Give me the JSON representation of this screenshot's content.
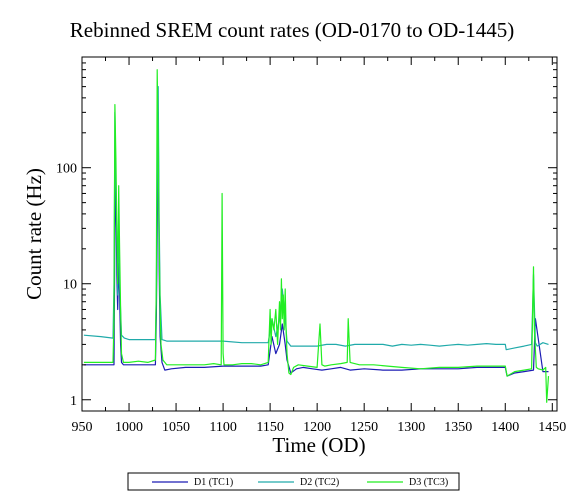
{
  "chart_data": {
    "type": "line",
    "title": "Rebinned SREM count rates (OD-0170 to OD-1445)",
    "xlabel": "Time (OD)",
    "ylabel": "Count rate (Hz)",
    "xlim": [
      950,
      1455
    ],
    "ylim": [
      0.8,
      900
    ],
    "yscale": "log",
    "grid": false,
    "legend_position": "bottom-center",
    "x_ticks": [
      950,
      1000,
      1050,
      1100,
      1150,
      1200,
      1250,
      1300,
      1350,
      1400,
      1450
    ],
    "y_ticks": [
      1,
      10,
      100
    ],
    "y_tick_labels": [
      "1",
      "10",
      "100"
    ],
    "series": [
      {
        "name": "D1 (TC1)",
        "color": "#1c1cb4",
        "x": [
          952,
          984,
          985,
          986,
          987,
          988,
          989,
          990,
          991,
          992,
          994,
          1000,
          1010,
          1020,
          1028,
          1029,
          1030,
          1031,
          1032,
          1033,
          1035,
          1038,
          1045,
          1060,
          1080,
          1100,
          1120,
          1140,
          1148,
          1152,
          1156,
          1160,
          1163,
          1166,
          1168,
          1172,
          1178,
          1185,
          1195,
          1205,
          1215,
          1225,
          1235,
          1250,
          1270,
          1290,
          1310,
          1330,
          1350,
          1370,
          1390,
          1400,
          1402,
          1410,
          1420,
          1430,
          1432,
          1440,
          1446
        ],
        "values": [
          2.0,
          2.0,
          30,
          80,
          12,
          6,
          15,
          8,
          3.0,
          2.1,
          2.0,
          2.0,
          2.0,
          2.0,
          2.0,
          5,
          25,
          300,
          15,
          3.5,
          2.1,
          1.8,
          1.85,
          1.9,
          1.9,
          1.95,
          1.95,
          1.95,
          2.0,
          3.5,
          2.5,
          3.0,
          4.5,
          3.0,
          2.2,
          1.7,
          1.85,
          1.9,
          1.85,
          1.8,
          1.85,
          1.9,
          1.8,
          1.85,
          1.8,
          1.8,
          1.85,
          1.85,
          1.85,
          1.9,
          1.9,
          1.9,
          1.6,
          1.7,
          1.75,
          1.8,
          5,
          1.75,
          1.75
        ]
      },
      {
        "name": "D2 (TC2)",
        "color": "#20aaaa",
        "x": [
          952,
          970,
          983,
          984,
          985,
          986,
          987,
          988,
          989,
          990,
          992,
          995,
          1000,
          1010,
          1020,
          1028,
          1029,
          1030,
          1031,
          1032,
          1033,
          1035,
          1040,
          1060,
          1080,
          1100,
          1120,
          1140,
          1148,
          1152,
          1156,
          1160,
          1163,
          1166,
          1168,
          1172,
          1180,
          1190,
          1200,
          1210,
          1220,
          1230,
          1240,
          1250,
          1260,
          1270,
          1280,
          1290,
          1300,
          1310,
          1320,
          1330,
          1340,
          1350,
          1360,
          1370,
          1380,
          1390,
          1400,
          1401,
          1410,
          1420,
          1428,
          1430,
          1432,
          1434,
          1440,
          1446
        ],
        "values": [
          3.6,
          3.5,
          3.4,
          10,
          300,
          60,
          25,
          8,
          40,
          10,
          3.6,
          3.4,
          3.3,
          3.3,
          3.3,
          3.3,
          8,
          60,
          500,
          40,
          8,
          3.3,
          3.2,
          3.2,
          3.2,
          3.2,
          3.1,
          3.1,
          3.1,
          5,
          3.5,
          5,
          9,
          5,
          3.2,
          2.9,
          2.9,
          2.9,
          2.9,
          3.0,
          3.0,
          2.9,
          3.0,
          3.0,
          3.0,
          3.0,
          2.9,
          3.0,
          2.95,
          3.0,
          2.95,
          2.9,
          2.95,
          3.0,
          2.95,
          3.0,
          3.05,
          3.0,
          3.0,
          2.7,
          2.8,
          2.9,
          3.0,
          12,
          3.1,
          2.9,
          3.1,
          3.0
        ]
      },
      {
        "name": "D3 (TC3)",
        "color": "#22ee22",
        "x": [
          952,
          970,
          983,
          984,
          985,
          986,
          987,
          988,
          989,
          990,
          991,
          992,
          994,
          1000,
          1010,
          1020,
          1028,
          1029,
          1030,
          1031,
          1032,
          1033,
          1034,
          1036,
          1040,
          1050,
          1060,
          1070,
          1080,
          1090,
          1098,
          1099,
          1100,
          1101,
          1110,
          1120,
          1130,
          1140,
          1148,
          1150,
          1151,
          1152,
          1154,
          1156,
          1158,
          1160,
          1161,
          1162,
          1163,
          1164,
          1165,
          1166,
          1167,
          1168,
          1170,
          1172,
          1175,
          1180,
          1190,
          1200,
          1203,
          1205,
          1208,
          1215,
          1225,
          1232,
          1233,
          1235,
          1245,
          1260,
          1275,
          1290,
          1310,
          1330,
          1350,
          1370,
          1390,
          1400,
          1402,
          1410,
          1420,
          1428,
          1430,
          1431,
          1433,
          1435,
          1440,
          1443,
          1444,
          1446
        ],
        "values": [
          2.1,
          2.1,
          2.1,
          5,
          350,
          120,
          30,
          10,
          70,
          20,
          6,
          2.5,
          2.1,
          2.1,
          2.15,
          2.1,
          2.2,
          10,
          700,
          150,
          25,
          6,
          3,
          2.2,
          2.0,
          2.0,
          2.0,
          2.0,
          2.0,
          2.05,
          2.0,
          60,
          2.5,
          2.0,
          2.0,
          2.05,
          2.05,
          2.0,
          2.1,
          6,
          3,
          5,
          4,
          6,
          3,
          7,
          4,
          11,
          5,
          8,
          4,
          9,
          4,
          2.5,
          1.7,
          1.65,
          1.9,
          2.0,
          1.95,
          1.9,
          4.5,
          2.0,
          1.95,
          2.0,
          2.05,
          2.1,
          5,
          2.1,
          2.0,
          2.0,
          1.95,
          1.9,
          1.85,
          1.9,
          1.9,
          1.95,
          1.95,
          1.95,
          1.6,
          1.75,
          1.8,
          1.85,
          14,
          4,
          1.9,
          1.85,
          1.8,
          1.9,
          0.95,
          1.6
        ]
      }
    ]
  }
}
